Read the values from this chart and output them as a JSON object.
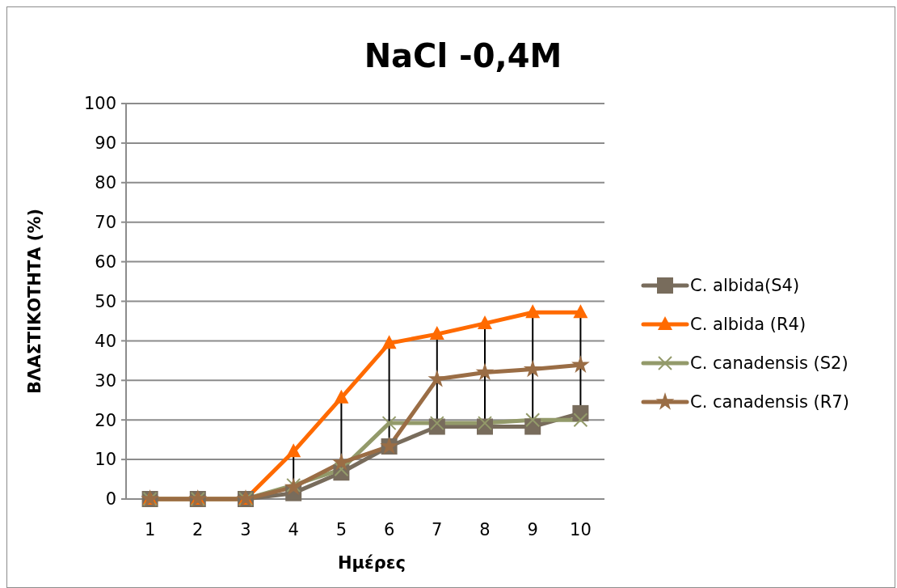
{
  "chart_data": {
    "type": "line",
    "title": "NaCl -0,4M",
    "xlabel": "Ημέρες",
    "ylabel": "ΒΛΑΣΤΙΚΟΤΗΤΑ (%)",
    "categories": [
      "1",
      "2",
      "3",
      "4",
      "5",
      "6",
      "7",
      "8",
      "9",
      "10"
    ],
    "ylim": [
      0,
      100
    ],
    "yticks": [
      0,
      10,
      20,
      30,
      40,
      50,
      60,
      70,
      80,
      90,
      100
    ],
    "grid": "y",
    "legend": "right",
    "series": [
      {
        "name": "C. albida(S4)",
        "color": "#786c5c",
        "marker": "square",
        "values": [
          0,
          0,
          0,
          1.5,
          6.7,
          13.3,
          18.3,
          18.3,
          18.3,
          21.7
        ]
      },
      {
        "name": "C. albida (R4)",
        "color": "#ff6a00",
        "marker": "triangle",
        "values": [
          0,
          0,
          0,
          12,
          25.6,
          39.4,
          41.7,
          44.4,
          47.2,
          47.2
        ]
      },
      {
        "name": "C. canadensis (S2)",
        "color": "#939a6a",
        "marker": "cross",
        "values": [
          0,
          0,
          0,
          3.5,
          7.5,
          19.2,
          19.2,
          19.2,
          20,
          20
        ]
      },
      {
        "name": "C. canadensis (R7)",
        "color": "#9a6d45",
        "marker": "star",
        "values": [
          0,
          0,
          0,
          3,
          9.2,
          13.3,
          30.3,
          32,
          32.8,
          33.9
        ]
      }
    ]
  }
}
